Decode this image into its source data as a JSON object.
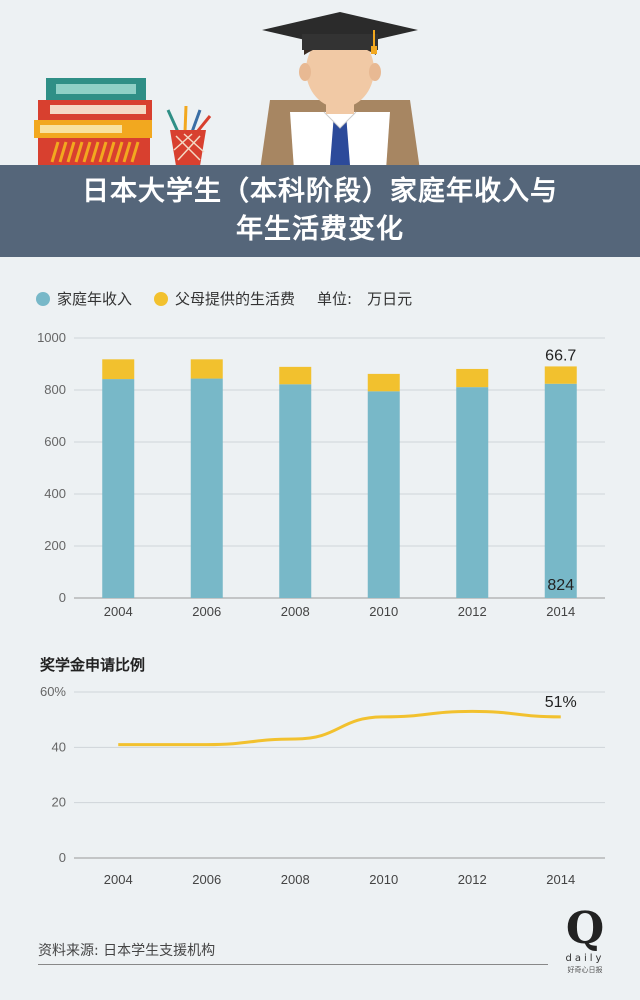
{
  "header": {
    "title_line1": "日本大学生（本科阶段）家庭年收入与",
    "title_line2": "年生活费变化"
  },
  "legend": {
    "items": [
      {
        "label": "家庭年收入",
        "color": "#78b8c8"
      },
      {
        "label": "父母提供的生活费",
        "color": "#f2c12e"
      }
    ],
    "unit_label": "单位:　万日元"
  },
  "chart2_title": "奖学金申请比例",
  "chart_data": [
    {
      "type": "bar",
      "stacked": true,
      "categories": [
        "2004",
        "2006",
        "2008",
        "2010",
        "2012",
        "2014"
      ],
      "series": [
        {
          "name": "家庭年收入",
          "color": "#78b8c8",
          "values": [
            842,
            844,
            822,
            795,
            811,
            824
          ]
        },
        {
          "name": "父母提供的生活费",
          "color": "#f2c12e",
          "values": [
            76,
            74,
            67,
            67,
            70,
            66.7
          ]
        }
      ],
      "ylim": [
        0,
        1000
      ],
      "yticks": [
        "0",
        "200",
        "400",
        "600",
        "800",
        "1000"
      ],
      "annotations": [
        "66.7",
        "824"
      ],
      "grid": true
    },
    {
      "type": "line",
      "categories": [
        "2004",
        "2006",
        "2008",
        "2010",
        "2012",
        "2014"
      ],
      "series": [
        {
          "color": "#f2c12e",
          "values": [
            41,
            41,
            43,
            51,
            53,
            51
          ]
        }
      ],
      "ylim": [
        0,
        60
      ],
      "yticks": [
        "0",
        "20",
        "40",
        "60%"
      ],
      "annotations": [
        "51%"
      ],
      "grid": true
    }
  ],
  "source": "资料来源: 日本学生支援机构",
  "brand": {
    "mark": "Q",
    "word": "daily",
    "sub": "好奇心日报"
  }
}
